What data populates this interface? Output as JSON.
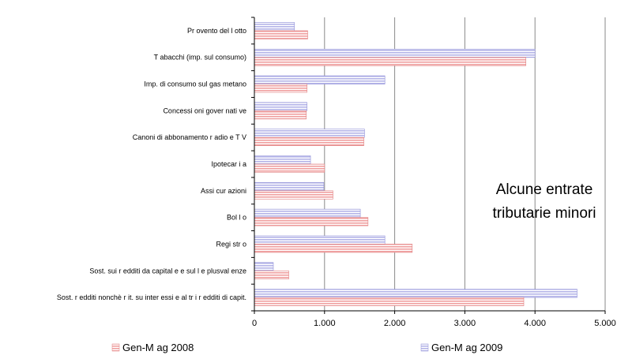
{
  "chart_data": {
    "type": "bar",
    "orientation": "horizontal",
    "title": "",
    "xlabel": "",
    "ylabel": "",
    "xlim": [
      0,
      5000
    ],
    "xticks": [
      0,
      1000,
      2000,
      3000,
      4000,
      5000
    ],
    "xtick_labels": [
      "0",
      "1.000",
      "2.000",
      "3.000",
      "4.000",
      "5.000"
    ],
    "grid": "vertical",
    "legend_position": "bottom",
    "annotation_lines": [
      "Alcune entrate",
      "tributarie minori"
    ],
    "categories": [
      "Pr ovento del l otto",
      "T abacchi (imp. sul consumo)",
      "Imp. di consumo sul gas metano",
      "Concessi oni gover nati ve",
      "Canoni di abbonamento r adio e T V",
      "Ipotecar i a",
      "Assi cur azioni",
      "Bol l o",
      "Regi str o",
      "Sost. sui r edditi da capital e e sul l e plusval enze",
      "Sost. r edditi nonchè r it. su inter essi e al tr i r edditi di capit."
    ],
    "series": [
      {
        "name": "Gen-M ag 2008",
        "color": "#f0a0a0",
        "values": [
          760,
          3870,
          750,
          740,
          1560,
          1000,
          1120,
          1620,
          2250,
          490,
          3840
        ]
      },
      {
        "name": "Gen-M ag 2009",
        "color": "#b4b4e8",
        "values": [
          570,
          4000,
          1860,
          750,
          1570,
          800,
          990,
          1510,
          1860,
          270,
          4600
        ]
      }
    ]
  }
}
